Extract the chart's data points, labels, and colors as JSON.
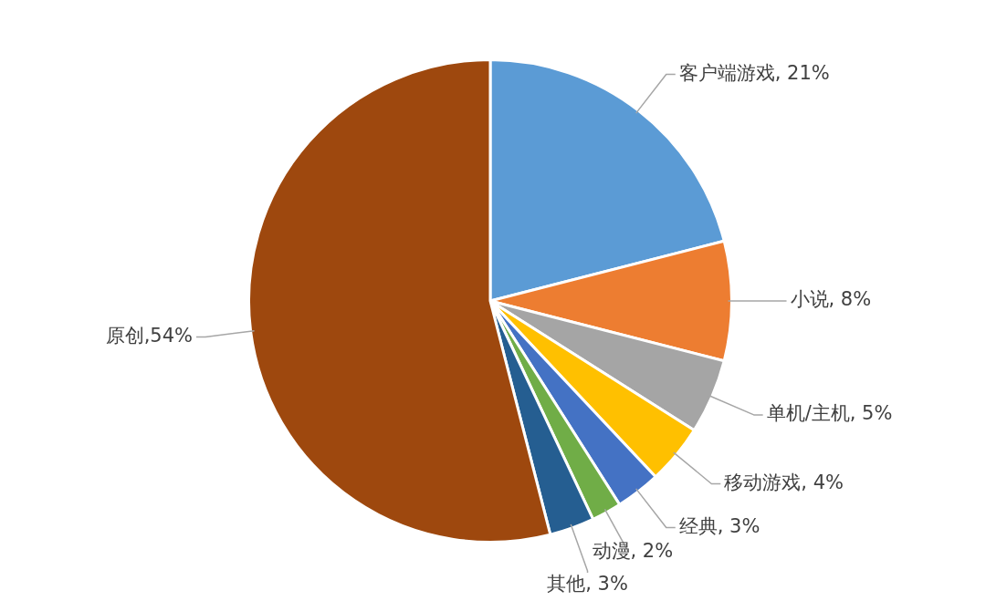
{
  "chart_data": {
    "type": "pie",
    "categories": [
      "客户端游戏",
      "小说",
      "单机/主机",
      "移动游戏",
      "经典",
      "动漫",
      "其他",
      "原创"
    ],
    "values": [
      21,
      8,
      5,
      4,
      3,
      2,
      3,
      54
    ],
    "colors": [
      "#5b9bd5",
      "#ed7d31",
      "#a5a5a5",
      "#ffc000",
      "#4472c4",
      "#70ad47",
      "#255e91",
      "#9e480e"
    ],
    "value_labels": [
      ", 21%",
      ", 8%",
      ", 5%",
      ", 4%",
      ", 3%",
      ", 2%",
      ", 3%",
      ",54%"
    ]
  }
}
